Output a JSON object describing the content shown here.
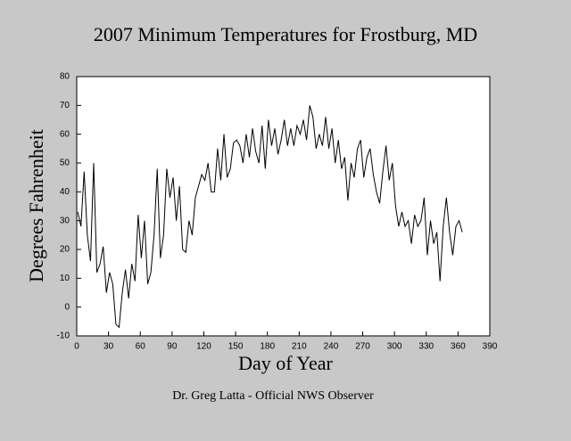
{
  "chart_data": {
    "type": "line",
    "title": "2007 Minimum Temperatures for Frostburg, MD",
    "xlabel": "Day of Year",
    "ylabel": "Degrees Fahrenheit",
    "footer": "Dr. Greg Latta - Official NWS Observer",
    "color": "#000000",
    "xlim": [
      0,
      390
    ],
    "xticks": [
      0,
      30,
      60,
      90,
      120,
      150,
      180,
      210,
      240,
      270,
      300,
      330,
      360,
      390
    ],
    "ylim": [
      -10,
      80
    ],
    "yticks": [
      -10,
      0,
      10,
      20,
      30,
      40,
      50,
      60,
      70,
      80
    ],
    "x": [
      1,
      4,
      7,
      10,
      13,
      16,
      19,
      22,
      25,
      28,
      31,
      34,
      37,
      40,
      43,
      46,
      49,
      52,
      55,
      58,
      61,
      64,
      67,
      70,
      73,
      76,
      79,
      82,
      85,
      88,
      91,
      94,
      97,
      100,
      103,
      106,
      109,
      112,
      115,
      118,
      121,
      124,
      127,
      130,
      133,
      136,
      139,
      142,
      145,
      148,
      151,
      154,
      157,
      160,
      163,
      166,
      169,
      172,
      175,
      178,
      181,
      184,
      187,
      190,
      193,
      196,
      199,
      202,
      205,
      208,
      211,
      214,
      217,
      220,
      223,
      226,
      229,
      232,
      235,
      238,
      241,
      244,
      247,
      250,
      253,
      256,
      259,
      262,
      265,
      268,
      271,
      274,
      277,
      280,
      283,
      286,
      289,
      292,
      295,
      298,
      301,
      304,
      307,
      310,
      313,
      316,
      319,
      322,
      325,
      328,
      331,
      334,
      337,
      340,
      343,
      346,
      349,
      352,
      355,
      358,
      361,
      364
    ],
    "values": [
      33,
      28,
      47,
      25,
      16,
      50,
      12,
      15,
      21,
      5,
      12,
      8,
      -6,
      -7,
      5,
      13,
      3,
      15,
      9,
      32,
      17,
      30,
      8,
      12,
      25,
      48,
      17,
      25,
      48,
      38,
      45,
      30,
      42,
      20,
      19,
      30,
      25,
      38,
      42,
      46,
      44,
      50,
      40,
      40,
      55,
      44,
      60,
      45,
      48,
      57,
      58,
      56,
      50,
      60,
      52,
      62,
      54,
      50,
      63,
      48,
      65,
      56,
      62,
      53,
      58,
      65,
      56,
      62,
      56,
      63,
      60,
      65,
      58,
      70,
      66,
      55,
      60,
      56,
      66,
      55,
      62,
      50,
      58,
      48,
      52,
      37,
      50,
      45,
      55,
      58,
      45,
      52,
      55,
      46,
      40,
      36,
      47,
      56,
      44,
      50,
      35,
      28,
      33,
      28,
      30,
      22,
      32,
      28,
      30,
      38,
      18,
      30,
      22,
      26,
      9,
      28,
      38,
      26,
      18,
      28,
      30,
      26
    ]
  }
}
